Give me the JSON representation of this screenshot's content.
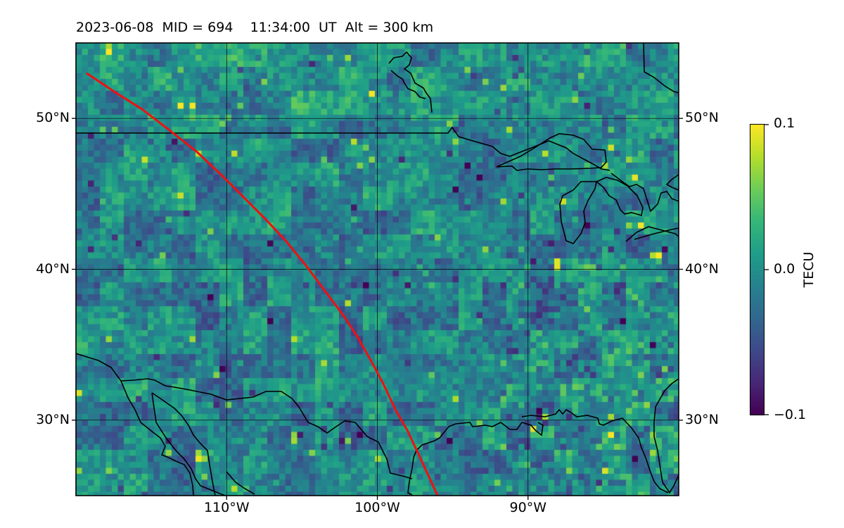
{
  "title": {
    "date": "2023-06-08",
    "mid": "MID = 694",
    "time": "11:34:00  UT",
    "alt": "Alt = 300 km"
  },
  "colors": {
    "track": "#ee1111",
    "coast": "#000000",
    "grid": "#000000"
  },
  "map": {
    "lon_range": [
      -120,
      -80
    ],
    "lat_range": [
      25,
      55
    ],
    "colormap": "viridis",
    "lat_ticks": [
      {
        "value": 30,
        "label": "30°N"
      },
      {
        "value": 40,
        "label": "40°N"
      },
      {
        "value": 50,
        "label": "50°N"
      }
    ],
    "lon_ticks": [
      {
        "value": -110,
        "label": "110°W"
      },
      {
        "value": -100,
        "label": "100°W"
      },
      {
        "value": -90,
        "label": "90°W"
      }
    ],
    "track": [
      [
        -119.3,
        53.0
      ],
      [
        -117.5,
        51.8
      ],
      [
        -115.6,
        50.6
      ],
      [
        -113.9,
        49.3
      ],
      [
        -112.0,
        47.8
      ],
      [
        -110.3,
        46.2
      ],
      [
        -108.9,
        44.8
      ],
      [
        -107.4,
        43.3
      ],
      [
        -106.0,
        41.8
      ],
      [
        -104.7,
        40.2
      ],
      [
        -103.5,
        38.6
      ],
      [
        -102.3,
        37.0
      ],
      [
        -101.3,
        35.5
      ],
      [
        -100.4,
        33.9
      ],
      [
        -99.6,
        32.4
      ],
      [
        -98.8,
        30.7
      ],
      [
        -98.0,
        29.3
      ],
      [
        -97.2,
        27.6
      ],
      [
        -96.6,
        26.3
      ],
      [
        -96.0,
        25.0
      ]
    ]
  },
  "colorbar": {
    "label": "TECU",
    "max_label": "0.1",
    "mid_label": "0.0",
    "min_label": "−0.1",
    "vmin": -0.1,
    "vmax": 0.1
  }
}
